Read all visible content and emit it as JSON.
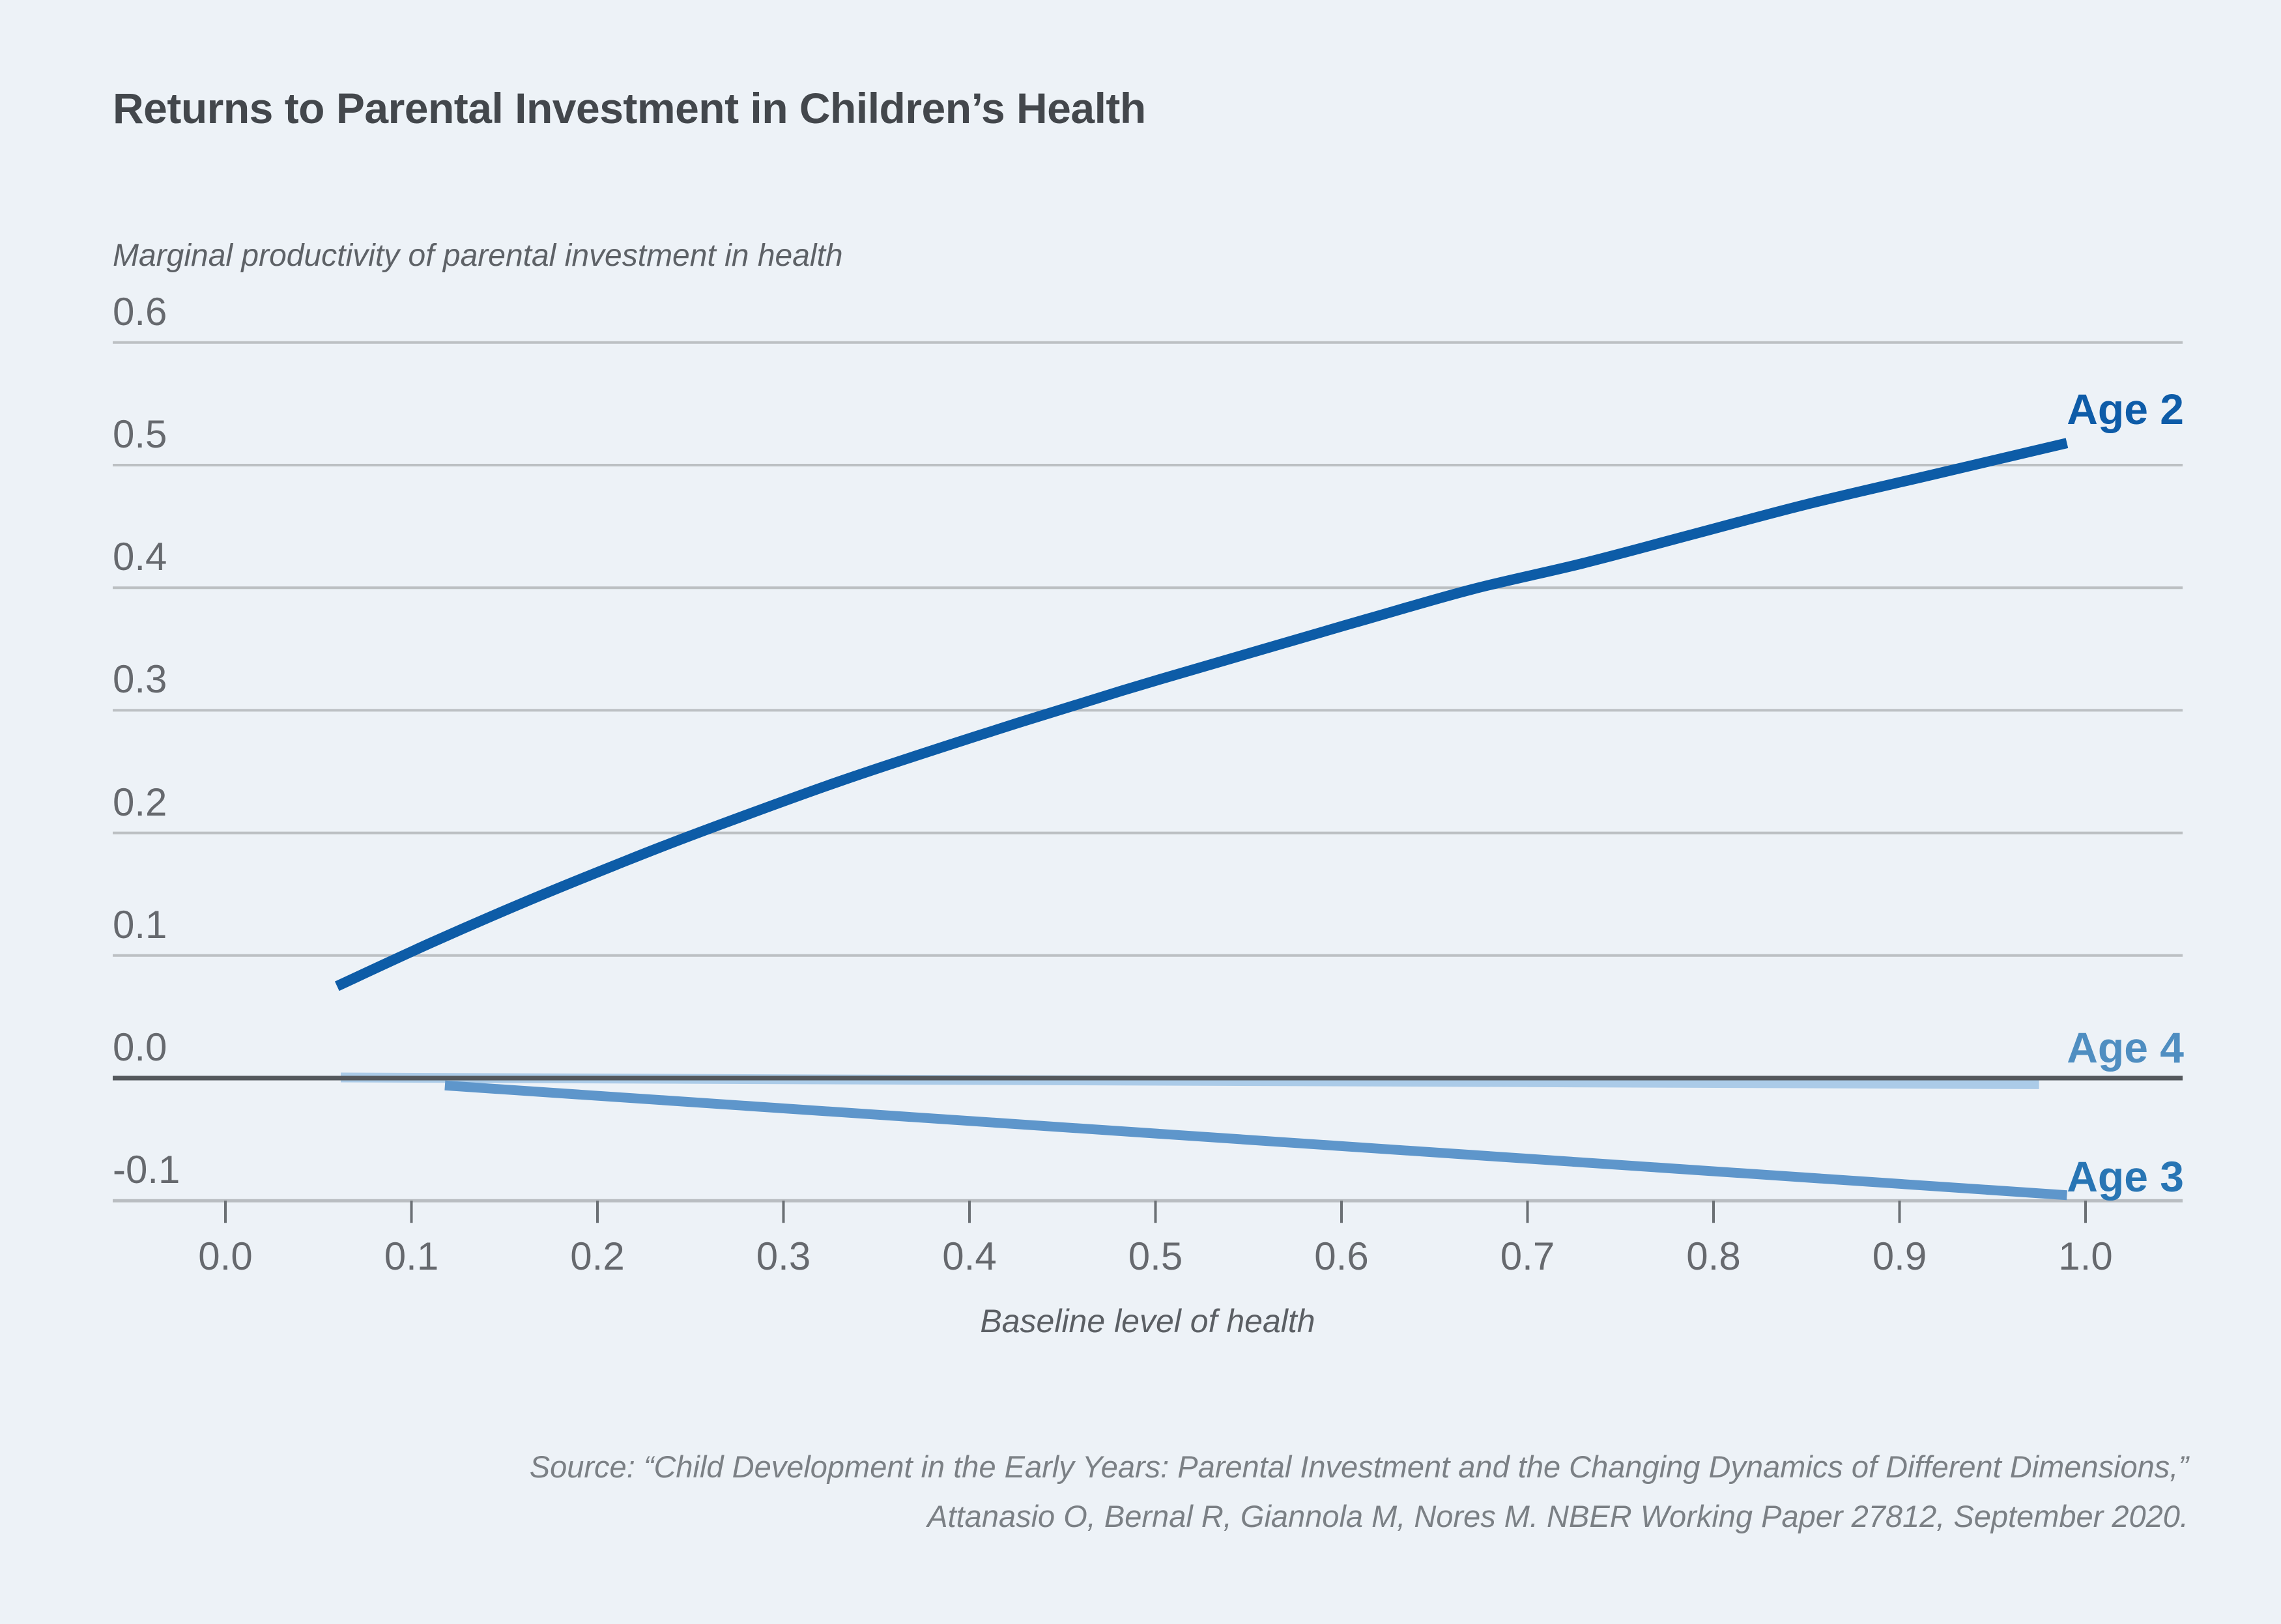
{
  "title": "Returns to Parental Investment in Children’s Health",
  "y_axis_title": "Marginal productivity of parental investment in health",
  "x_axis_title": "Baseline level of health",
  "source": {
    "line1": "Source: “Child Development in the Early Years: Parental Investment and the Changing Dynamics of Different Dimensions,”",
    "line2": "Attanasio O, Bernal R, Giannola M, Nores M. NBER Working Paper 27812, September 2020."
  },
  "colors": {
    "background": "#EDF2F7",
    "title_text": "#43474C",
    "axis_title_text": "#5E6267",
    "tick_label_text": "#66696E",
    "gridline": "#BCC0C3",
    "bottom_axis_line": "#B9BDC1",
    "tick_mark": "#6B7074",
    "zero_line": "#54585C",
    "source_text": "#7B8085"
  },
  "chart_data": {
    "type": "line",
    "title": "Returns to Parental Investment in Children’s Health",
    "xlabel": "Baseline level of health",
    "ylabel": "Marginal productivity of parental investment in health",
    "xlim": [
      -0.06,
      1.05
    ],
    "ylim": [
      -0.1,
      0.64
    ],
    "grid": "horizontal",
    "legend_position": "labels-at-line-ends-right",
    "x_ticks": [
      0.0,
      0.1,
      0.2,
      0.3,
      0.4,
      0.5,
      0.6,
      0.7,
      0.8,
      0.9,
      1.0
    ],
    "x_tick_labels": [
      "0.0",
      "0.1",
      "0.2",
      "0.3",
      "0.4",
      "0.5",
      "0.6",
      "0.7",
      "0.8",
      "0.9",
      "1.0"
    ],
    "y_ticks": [
      0.6,
      0.5,
      0.4,
      0.3,
      0.2,
      0.1,
      0.0,
      -0.1
    ],
    "y_tick_labels": [
      "0.6",
      "0.5",
      "0.4",
      "0.3",
      "0.2",
      "0.1",
      "0.0",
      "-0.1"
    ],
    "series": [
      {
        "name": "Age 2",
        "line_color": "#0D5CA7",
        "label_color": "#0E5CA8",
        "points": [
          [
            0.06,
            0.075
          ],
          [
            0.11,
            0.11
          ],
          [
            0.16,
            0.143
          ],
          [
            0.21,
            0.174
          ],
          [
            0.254,
            0.2
          ],
          [
            0.33,
            0.242
          ],
          [
            0.406,
            0.28
          ],
          [
            0.482,
            0.316
          ],
          [
            0.556,
            0.349
          ],
          [
            0.615,
            0.375
          ],
          [
            0.671,
            0.399
          ],
          [
            0.73,
            0.42
          ],
          [
            0.79,
            0.444
          ],
          [
            0.85,
            0.468
          ],
          [
            0.92,
            0.493
          ],
          [
            0.99,
            0.518
          ]
        ]
      },
      {
        "name": "Age 3",
        "line_color": "#5E96CB",
        "label_color": "#2875B4",
        "points": [
          [
            0.118,
            -0.006
          ],
          [
            0.99,
            -0.0955
          ]
        ]
      },
      {
        "name": "Age 4",
        "line_color": "#ABCBE8",
        "label_color": "#4F8EC1",
        "points": [
          [
            0.062,
            0.0005
          ],
          [
            0.975,
            -0.005
          ]
        ]
      }
    ]
  }
}
